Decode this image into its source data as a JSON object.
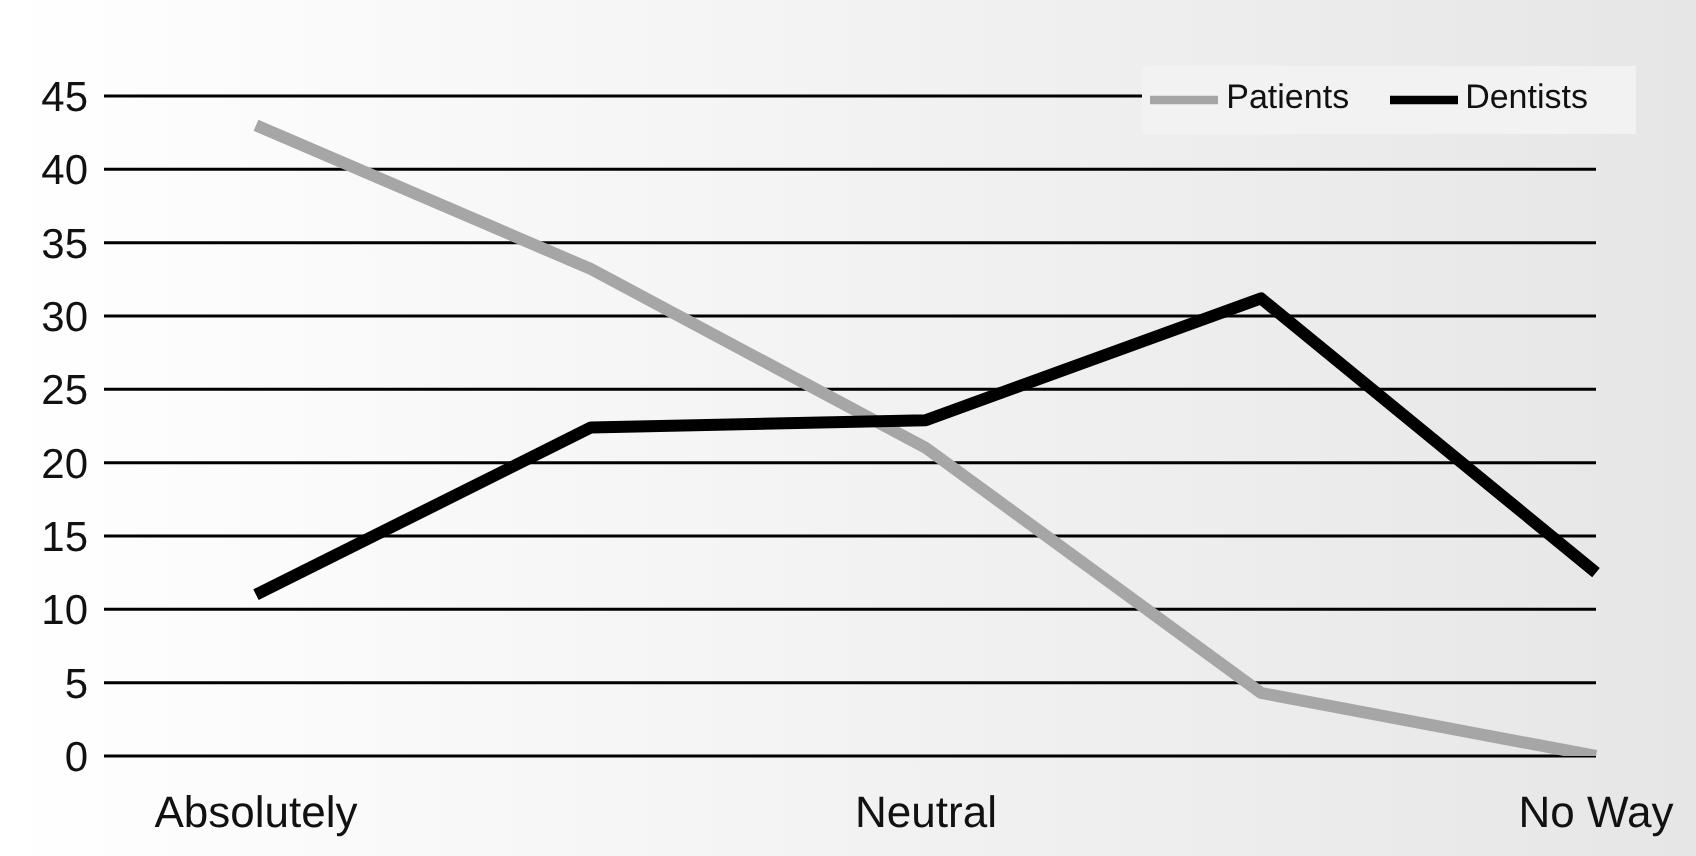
{
  "chart_data": {
    "type": "line",
    "categories": [
      "Absolutely",
      null,
      "Neutral",
      null,
      "No Way"
    ],
    "series": [
      {
        "name": "Patients",
        "color": "#a6a6a6",
        "values": [
          43,
          33.2,
          21,
          4.3,
          0
        ]
      },
      {
        "name": "Dentists",
        "color": "#000000",
        "values": [
          11,
          22.4,
          22.9,
          31.2,
          12.5
        ]
      }
    ],
    "ylim": [
      0,
      45
    ],
    "yticks": [
      0,
      5,
      10,
      15,
      20,
      25,
      30,
      35,
      40,
      45
    ],
    "grid": "y",
    "legend": "top right",
    "marker": "none",
    "line_style": "solid"
  }
}
